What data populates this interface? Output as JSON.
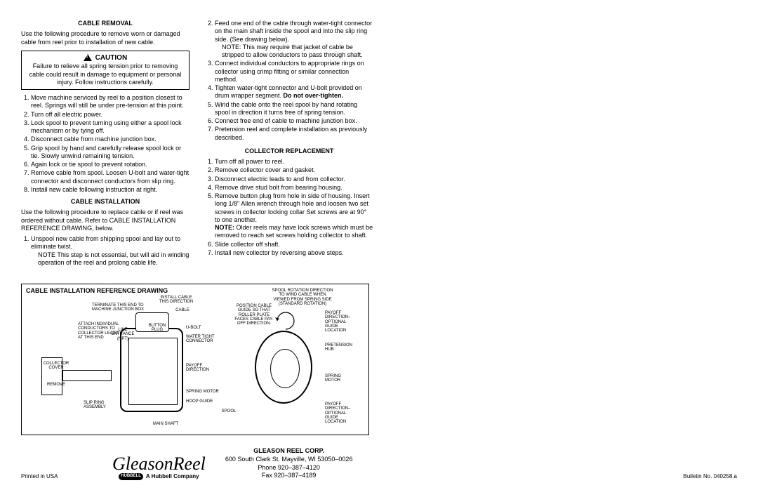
{
  "col1": {
    "removal": {
      "title": "CABLE REMOVAL",
      "intro": "Use the following procedure to remove worn or damaged cable from reel prior to installation of new cable.",
      "caution_label": "CAUTION",
      "caution_text": "Failure to relieve all spring tension prior to removing cable could result in damage to equipment or personal injury.  Follow instructions carefully.",
      "item1": "Move machine serviced by reel to a position closest to reel.  Springs will still be under pre-tension at this point.",
      "item2": "Turn off all electric power.",
      "item3": "Lock spool to prevent turning using either a spool lock mechanism or by tying off.",
      "item4": "Disconnect cable from machine junction box.",
      "item5": "Grip spool by hand and carefully release spool lock or tie.  Slowly unwind remaining tension.",
      "item6": "Again lock or tie spool to prevent rotation.",
      "item7": "Remove cable from spool.  Loosen U-bolt and water-tight connector and disconnect conductors from slip ring.",
      "item8": "Install new cable following instruction at right."
    },
    "install": {
      "title": "CABLE INSTALLATION",
      "intro": "Use the following procedure to replace cable or if reel was ordered without cable. Refer to CABLE INSTALLATION REFERENCE DRAWING, below.",
      "item1": "Unspool new cable from shipping spool and lay out to eliminate twist.",
      "item1_note": "NOTE  This step is not essential, but will aid in winding operation of the reel and prolong cable life."
    }
  },
  "col2": {
    "install": {
      "item2a": "Feed one end of the cable through water-tight connector on the main shaft inside the spool and into the slip ring side. (See drawing below).",
      "item2b": "NOTE: This may require that jacket of cable be stripped to allow conductors to pass through shaft.",
      "item3": "Connect individual conductors to appropriate rings on collector using crimp fitting or similar connection method.",
      "item4a": "Tighten water-tight connector and U-bolt provided on drum wrapper segment.  ",
      "item4b": "Do not over-tighten.",
      "item5": "Wind the cable onto the reel spool by hand rotating spool in direction it turns free of spring tension.",
      "item6": "Connect free end of cable to machine junction box.",
      "item7": "Pretension reel and complete installation as previously described."
    },
    "collector": {
      "title": "COLLECTOR REPLACEMENT",
      "item1": "Turn off all power to reel.",
      "item2": "Remove collector cover and gasket.",
      "item3": "Disconnect electric leads to and from collector.",
      "item4": "Remove drive stud bolt from bearing housing.",
      "item5a": "Remove button plug from hole in side of housing.  Insert long 1/8\" Allen wrench through hole and loosen two set screws in collector locking collar  Set screws are at 90° to one another.",
      "item5b": "NOTE:",
      "item5c": "  Older reels may have lock screws which must be removed to reach set screws holding collector to shaft.",
      "item6": "Slide collector off shaft.",
      "item7": "Install new collector by reversing above steps."
    }
  },
  "drawing": {
    "title": "CABLE INSTALLATION REFERENCE DRAWING",
    "labels": {
      "terminate": "TERMINATE THIS END TO\nMACHINE JUNCTION BOX",
      "attach": "ATTACH INDIVIDUAL\nCONDUCTORS TO\nCOLLECTOR LEADS\nAT THIS END",
      "collector_cover": "COLLECTOR\nCOVER",
      "remove": "REMOVE",
      "slip_ring": "SLIP RING\nASSEMBLY",
      "line_entrance": "LINE\nENTRANCE\n(NPT)",
      "install_cable": "INSTALL CABLE\nTHIS DIRECTION",
      "cable": "CABLE",
      "button_plug": "BUTTON\nPLUG",
      "ubolt": "U-BOLT",
      "water_tight": "WATER  TIGHT\nCONNECTOR",
      "payoff_dir": "PAYOFF\nDIRECTION",
      "main_shaft": "MAIN SHAFT",
      "spring_motor_l": "SPRING MOTOR",
      "hoop_guide": "HOOP GUIDE",
      "spool": "SPOOL",
      "position_cable": "POSITION CABLE\nGUIDE SO THAT\nROLLER PLATE\nFACES CABLE PAY-\nOFF DIRECTION.",
      "spool_rotation": "SPOOL ROTATION DIRECTION\nTO WIND CABLE WHEN\nVIEWED FROM SPRING SIDE\n(STANDARD ROTATION)",
      "payoff_top": "PAYOFF\nDIRECTION–\nOPTIONAL\nGUIDE\nLOCATION",
      "pretension_hub": "PRETENSION\nHUB",
      "spring_motor_r": "SPRING\nMOTOR",
      "payoff_bot": "PAYOFF\nDIRECTION–\nOPTIONAL\nGUIDE\nLOCATION"
    }
  },
  "footer": {
    "logo": "GleasonReel",
    "hubbell": "A Hubbell Company",
    "hubbell_tag": "HUBBELL",
    "company": "GLEASON REEL CORP.",
    "address": "600 South Clark St.      Mayville, WI 53050–0026",
    "phone": "Phone 920–387–4120",
    "fax": "Fax 920–387–4189",
    "printed": "Printed in USA",
    "bulletin": "Bulletin No. 040258.a"
  }
}
